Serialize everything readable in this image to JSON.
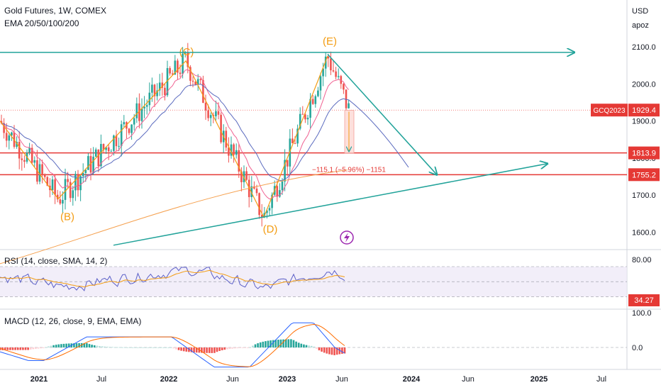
{
  "header": {
    "symbol_line": "Gold Futures, 1W, COMEX",
    "indicator_line": "EMA 20/50/100/200"
  },
  "price_scale": {
    "currency": "USD",
    "unit": "apoz"
  },
  "colors": {
    "up": "#26a69a",
    "down": "#ef5350",
    "wave": "#f39c12",
    "trend": "#22a39a",
    "ema_red": "#f06292",
    "ema_blue": "#5b6bbf",
    "ema_orange": "#f5a04e",
    "hline": "#e53935",
    "rsi": "#5b5fc7",
    "rsi_signal": "#f39c12",
    "macd": "#2962ff",
    "macd_signal": "#ff6d00",
    "badge": "#e53935"
  },
  "icons": {
    "event": "lightning-icon"
  },
  "chart_data": [
    {
      "type": "candlestick",
      "title": "Gold Futures, 1W, COMEX",
      "x_axis": {
        "ticks": [
          "2021",
          "Jul",
          "2022",
          "Jun",
          "2023",
          "Jun",
          "2024",
          "Jun",
          "2025",
          "Jul"
        ]
      },
      "y_axis": {
        "ticks": [
          "1600.0",
          "1700.0",
          "1800.0",
          "1900.0",
          "2000.0",
          "2100.0"
        ],
        "range": [
          1570,
          2160
        ]
      },
      "wave_points": [
        {
          "label": "(B)",
          "value": 1678
        },
        {
          "label": "(C)",
          "value": 2062
        },
        {
          "label": "(D)",
          "value": 1660
        },
        {
          "label": "(E)",
          "value": 2075
        }
      ],
      "price_tags": [
        {
          "label": "GCQ2023",
          "value": "1929.4"
        },
        {
          "value": "1813.9"
        },
        {
          "value": "1755.2"
        }
      ],
      "measure_label": "−115.1 (−5.96%) −1151",
      "horizontal_levels": [
        1813.9,
        1755.2
      ]
    },
    {
      "type": "line",
      "title": "RSI (14, close, SMA, 14, 2)",
      "y_axis": {
        "ticks": [
          "80.00"
        ],
        "range": [
          20,
          90
        ]
      },
      "last_value": "34.27"
    },
    {
      "type": "histogram",
      "title": "MACD (12, 26, close, 9, EMA, EMA)",
      "y_axis": {
        "ticks": [
          "100.0",
          "0.0"
        ]
      }
    }
  ]
}
